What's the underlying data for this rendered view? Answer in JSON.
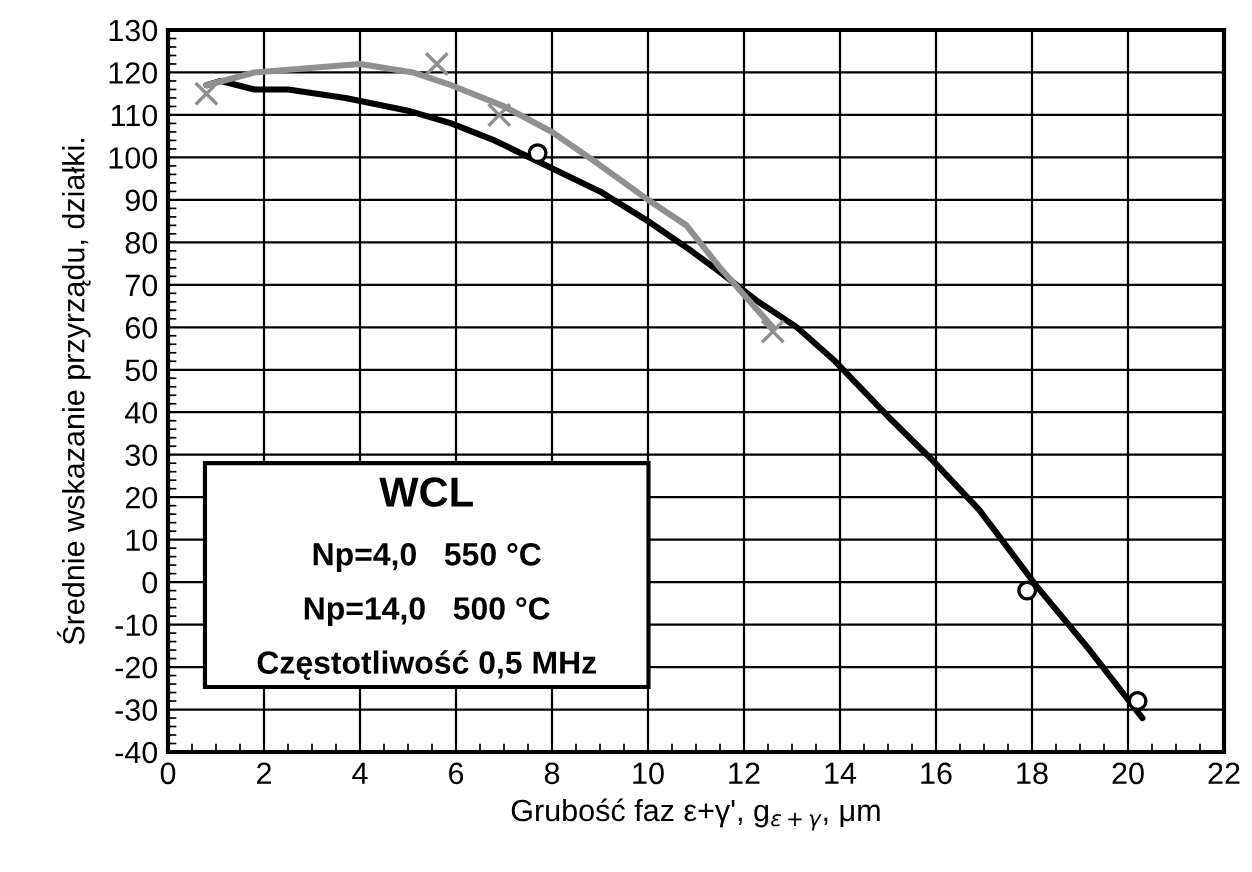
{
  "chart_data": {
    "type": "line",
    "xlabel": "Grubość faz ε+γ', g$_{ε+γ}$, μm",
    "ylabel": "Średnie wskazanie przyrządu, działki.",
    "series": [
      {
        "color": "#000000",
        "x": [
          0.8,
          1.1,
          1.8,
          2.5,
          3.7,
          5.0,
          5.9,
          6.8,
          7.9,
          9.0,
          10.0,
          10.9,
          11.5,
          12.3,
          13.1,
          13.9,
          15.0,
          15.9,
          16.9,
          18.1,
          19.2,
          20.3
        ],
        "values": [
          117,
          118,
          116,
          116,
          114,
          111,
          108,
          104,
          98,
          92,
          85,
          78,
          73,
          66,
          60,
          52,
          39,
          29,
          17,
          -1,
          -16,
          -32
        ]
      },
      {
        "color": "#909090",
        "x": [
          0.8,
          1.8,
          2.9,
          4.0,
          5.1,
          5.9,
          7.0,
          8.0,
          8.9,
          10.0,
          10.8,
          11.5,
          12.6
        ],
        "values": [
          117,
          120,
          121,
          122,
          120,
          117,
          112,
          106,
          99,
          90,
          84,
          74,
          60
        ]
      },
      {
        "type": "scatter",
        "marker": "circle",
        "color": "#000000",
        "x": [
          7.7,
          17.9,
          20.2
        ],
        "values": [
          101,
          -2,
          -28
        ]
      },
      {
        "type": "scatter",
        "marker": "cross",
        "color": "#909090",
        "x": [
          0.8,
          5.6,
          6.9,
          12.6
        ],
        "values": [
          115,
          122,
          110,
          59
        ]
      }
    ],
    "xlim": [
      0,
      22
    ],
    "xticks": [
      0,
      2,
      4,
      6,
      8,
      10,
      12,
      14,
      16,
      18,
      20,
      22
    ],
    "ylim": [
      -40,
      130
    ],
    "yticks": [
      -40,
      -30,
      -20,
      -10,
      0,
      10,
      20,
      30,
      40,
      50,
      60,
      70,
      80,
      90,
      100,
      110,
      120,
      130
    ],
    "grid": true,
    "legend": false,
    "annotations": [
      "WCL",
      "Np=4,0   550 °C",
      "Np=14,0   500 °C",
      "Częstotliwość 0,5 MHz"
    ]
  }
}
